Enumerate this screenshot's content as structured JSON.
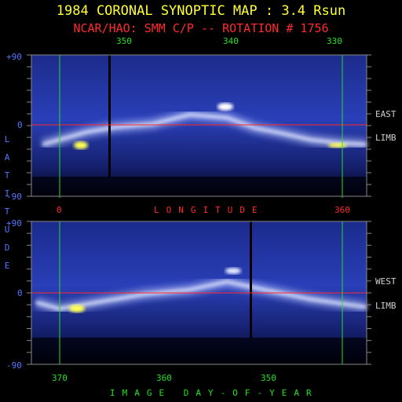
{
  "title": "1984 CORONAL SYNOPTIC MAP : 3.4 Rsun",
  "subtitle": "NCAR/HAO: SMM C/P -- ROTATION # 1756",
  "y_axis_label": "LATITUDE",
  "longitude_label": "LONGITUDE",
  "day_label": "IMAGE DAY-OF-YEAR",
  "colors": {
    "title": "#ffff33",
    "subtitle": "#ff2a2a",
    "grid_lines": "#22e022",
    "equator": "#ff2a2a",
    "axis_text": "#5577ff"
  },
  "chart_data": [
    {
      "type": "heatmap",
      "panel": "top",
      "limb": "EAST LIMB",
      "side_label_1": "EAST",
      "side_label_2": "LIMB",
      "top_axis_ticks": [
        "350",
        "340",
        "330"
      ],
      "bottom_axis_ticks": [
        "0",
        "360"
      ],
      "y_ticks": [
        "+90",
        "0",
        "-90"
      ],
      "ylim": [
        -90,
        90
      ],
      "streamer_belt": [
        {
          "longitude": 12,
          "latitude": -24
        },
        {
          "longitude": 30,
          "latitude": -18
        },
        {
          "longitude": 60,
          "latitude": -8
        },
        {
          "longitude": 90,
          "latitude": -2
        },
        {
          "longitude": 130,
          "latitude": 2
        },
        {
          "longitude": 170,
          "latitude": 14
        },
        {
          "longitude": 210,
          "latitude": 10
        },
        {
          "longitude": 240,
          "latitude": -3
        },
        {
          "longitude": 270,
          "latitude": -10
        },
        {
          "longitude": 300,
          "latitude": -18
        },
        {
          "longitude": 330,
          "latitude": -22
        },
        {
          "longitude": 360,
          "latitude": -24
        }
      ]
    },
    {
      "type": "heatmap",
      "panel": "bottom",
      "limb": "WEST LIMB",
      "side_label_1": "WEST",
      "side_label_2": "LIMB",
      "bottom_axis_ticks": [
        "370",
        "360",
        "350"
      ],
      "y_ticks": [
        "+90",
        "0",
        "-90"
      ],
      "ylim": [
        -90,
        90
      ],
      "streamer_belt": [
        {
          "longitude": 5,
          "latitude": -12
        },
        {
          "longitude": 30,
          "latitude": -20
        },
        {
          "longitude": 70,
          "latitude": -12
        },
        {
          "longitude": 120,
          "latitude": -2
        },
        {
          "longitude": 170,
          "latitude": 4
        },
        {
          "longitude": 210,
          "latitude": 14
        },
        {
          "longitude": 250,
          "latitude": 4
        },
        {
          "longitude": 300,
          "latitude": -8
        },
        {
          "longitude": 360,
          "latitude": -18
        }
      ]
    }
  ]
}
